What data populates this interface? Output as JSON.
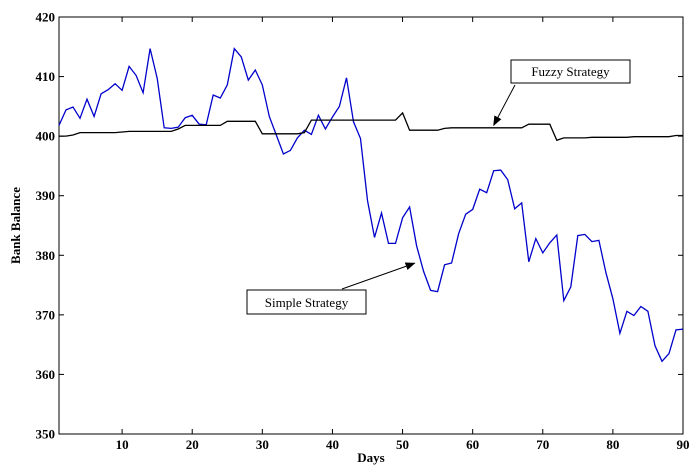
{
  "chart_data": {
    "type": "line",
    "title": "",
    "xlabel": "Days",
    "ylabel": "Bank Balance",
    "xlim": [
      1,
      90
    ],
    "ylim": [
      350,
      420
    ],
    "xticks": [
      10,
      20,
      30,
      40,
      50,
      60,
      70,
      80,
      90
    ],
    "yticks": [
      350,
      360,
      370,
      380,
      390,
      400,
      410,
      420
    ],
    "grid": false,
    "legend": "none",
    "x": [
      1,
      2,
      3,
      4,
      5,
      6,
      7,
      8,
      9,
      10,
      11,
      12,
      13,
      14,
      15,
      16,
      17,
      18,
      19,
      20,
      21,
      22,
      23,
      24,
      25,
      26,
      27,
      28,
      29,
      30,
      31,
      32,
      33,
      34,
      35,
      36,
      37,
      38,
      39,
      40,
      41,
      42,
      43,
      44,
      45,
      46,
      47,
      48,
      49,
      50,
      51,
      52,
      53,
      54,
      55,
      56,
      57,
      58,
      59,
      60,
      61,
      62,
      63,
      64,
      65,
      66,
      67,
      68,
      69,
      70,
      71,
      72,
      73,
      74,
      75,
      76,
      77,
      78,
      79,
      80,
      81,
      82,
      83,
      84,
      85,
      86,
      87,
      88,
      89,
      90
    ],
    "series": [
      {
        "name": "Simple Strategy",
        "color": "#0000cc",
        "values": [
          401.8,
          404.4,
          404.9,
          403.0,
          406.2,
          403.3,
          407.1,
          407.8,
          408.8,
          407.7,
          411.7,
          410.2,
          407.3,
          414.7,
          409.7,
          401.4,
          401.3,
          401.5,
          403.1,
          403.5,
          402.0,
          401.9,
          406.9,
          406.4,
          408.6,
          414.7,
          413.3,
          409.4,
          411.1,
          408.6,
          403.3,
          400.2,
          397.0,
          397.6,
          399.7,
          401.0,
          400.3,
          403.5,
          401.2,
          403.2,
          405.0,
          409.8,
          402.4,
          399.6,
          389.2,
          383.0,
          387.1,
          382.0,
          382.0,
          386.3,
          388.1,
          381.6,
          377.3,
          374.1,
          373.9,
          378.4,
          378.7,
          383.6,
          386.9,
          387.7,
          391.1,
          390.5,
          394.2,
          394.3,
          392.7,
          387.8,
          388.8,
          378.9,
          382.8,
          380.4,
          382.1,
          383.4,
          372.4,
          374.7,
          383.3,
          383.5,
          382.3,
          382.5,
          377.1,
          372.7,
          366.9,
          370.6,
          369.9,
          371.4,
          370.6,
          364.8,
          362.2,
          363.5,
          367.5,
          367.6
        ]
      },
      {
        "name": "Fuzzy Strategy",
        "color": "#000000",
        "values": [
          400.0,
          400.0,
          400.2,
          400.6,
          400.6,
          400.6,
          400.6,
          400.6,
          400.6,
          400.7,
          400.8,
          400.8,
          400.8,
          400.8,
          400.8,
          400.8,
          400.8,
          401.2,
          401.8,
          401.8,
          401.8,
          401.8,
          401.8,
          401.8,
          402.5,
          402.5,
          402.5,
          402.5,
          402.5,
          400.4,
          400.4,
          400.4,
          400.4,
          400.4,
          400.4,
          400.6,
          402.7,
          402.7,
          402.7,
          402.7,
          402.7,
          402.7,
          402.7,
          402.7,
          402.7,
          402.7,
          402.7,
          402.7,
          402.7,
          403.9,
          401.0,
          401.0,
          401.0,
          401.0,
          401.0,
          401.3,
          401.4,
          401.4,
          401.4,
          401.4,
          401.4,
          401.4,
          401.4,
          401.4,
          401.4,
          401.4,
          401.4,
          402.0,
          402.0,
          402.0,
          402.0,
          399.3,
          399.7,
          399.7,
          399.7,
          399.7,
          399.8,
          399.8,
          399.8,
          399.8,
          399.8,
          399.8,
          399.9,
          399.9,
          399.9,
          399.9,
          399.9,
          399.9,
          400.1,
          400.1
        ]
      }
    ],
    "annotations": [
      {
        "text": "Fuzzy Strategy",
        "x": 63,
        "y": 401.5
      },
      {
        "text": "Simple Strategy",
        "x": 52,
        "y": 379
      }
    ]
  }
}
